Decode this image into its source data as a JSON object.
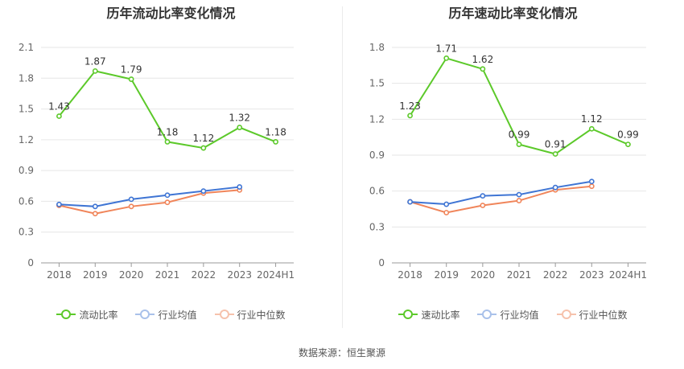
{
  "source_label": "数据来源：恒生聚源",
  "chart_data": [
    {
      "type": "line",
      "title": "历年流动比率变化情况",
      "categories": [
        "2018",
        "2019",
        "2020",
        "2021",
        "2022",
        "2023",
        "2024H1"
      ],
      "ylim": [
        0,
        2.1
      ],
      "yticks": [
        "0",
        "0.3",
        "0.6",
        "0.9",
        "1.2",
        "1.5",
        "1.8",
        "2.1"
      ],
      "grid": true,
      "legend_position": "bottom",
      "series": [
        {
          "name": "流动比率",
          "color": "#5cc92a",
          "values": [
            1.43,
            1.87,
            1.79,
            1.18,
            1.12,
            1.32,
            1.18
          ],
          "data_labels": [
            "1.43",
            "1.87",
            "1.79",
            "1.18",
            "1.12",
            "1.32",
            "1.18"
          ]
        },
        {
          "name": "行业均值",
          "color": "#3f75d4",
          "values": [
            0.57,
            0.55,
            0.62,
            0.66,
            0.7,
            0.74,
            null
          ]
        },
        {
          "name": "行业中位数",
          "color": "#f0855a",
          "values": [
            0.56,
            0.48,
            0.55,
            0.59,
            0.68,
            0.71,
            null
          ]
        }
      ]
    },
    {
      "type": "line",
      "title": "历年速动比率变化情况",
      "categories": [
        "2018",
        "2019",
        "2020",
        "2021",
        "2022",
        "2023",
        "2024H1"
      ],
      "ylim": [
        0,
        1.8
      ],
      "yticks": [
        "0",
        "0.3",
        "0.6",
        "0.9",
        "1.2",
        "1.5",
        "1.8"
      ],
      "grid": true,
      "legend_position": "bottom",
      "series": [
        {
          "name": "速动比率",
          "color": "#5cc92a",
          "values": [
            1.23,
            1.71,
            1.62,
            0.99,
            0.91,
            1.12,
            0.99
          ],
          "data_labels": [
            "1.23",
            "1.71",
            "1.62",
            "0.99",
            "0.91",
            "1.12",
            "0.99"
          ]
        },
        {
          "name": "行业均值",
          "color": "#3f75d4",
          "values": [
            0.51,
            0.49,
            0.56,
            0.57,
            0.63,
            0.68,
            null
          ]
        },
        {
          "name": "行业中位数",
          "color": "#f0855a",
          "values": [
            0.51,
            0.42,
            0.48,
            0.52,
            0.61,
            0.64,
            null
          ]
        }
      ]
    }
  ]
}
